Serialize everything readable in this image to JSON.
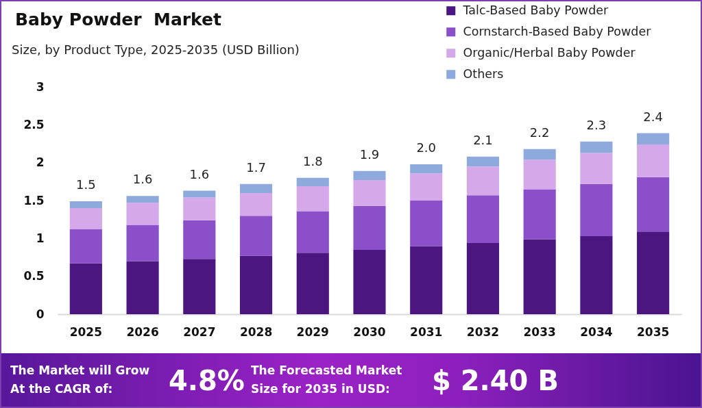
{
  "chart_data": {
    "type": "bar",
    "title": "Baby Powder  Market",
    "subtitle": "Size, by Product Type, 2025-2035 (USD Billion)",
    "categories": [
      "2025",
      "2026",
      "2027",
      "2028",
      "2029",
      "2030",
      "2031",
      "2032",
      "2033",
      "2034",
      "2035"
    ],
    "stacked": true,
    "series": [
      {
        "name": "Talc-Based Baby Powder",
        "color": "#4b1680",
        "values": [
          0.67,
          0.7,
          0.73,
          0.77,
          0.81,
          0.85,
          0.9,
          0.94,
          0.99,
          1.03,
          1.09
        ]
      },
      {
        "name": "Cornstarch-Based Baby Powder",
        "color": "#8b4fc9",
        "values": [
          0.45,
          0.48,
          0.51,
          0.53,
          0.55,
          0.58,
          0.6,
          0.63,
          0.66,
          0.69,
          0.72
        ]
      },
      {
        "name": "Organic/Herbal Baby Powder",
        "color": "#d4a8e9",
        "values": [
          0.28,
          0.29,
          0.3,
          0.3,
          0.33,
          0.34,
          0.36,
          0.38,
          0.39,
          0.41,
          0.43
        ]
      },
      {
        "name": "Others",
        "color": "#8eaadd",
        "values": [
          0.09,
          0.09,
          0.09,
          0.12,
          0.11,
          0.12,
          0.12,
          0.13,
          0.14,
          0.15,
          0.15
        ]
      }
    ],
    "ylim": [
      0,
      3
    ],
    "yticks": [
      0,
      0.5,
      1,
      1.5,
      2,
      2.5,
      3
    ],
    "totals": [
      "1.5",
      "1.6",
      "1.6",
      "1.7",
      "1.8",
      "1.9",
      "2.0",
      "2.1",
      "2.2",
      "2.3",
      "2.4"
    ],
    "legend": "top right",
    "annotations": [
      "The Market will Grow At the CAGR of:",
      "4.8%",
      "The Forecasted Market Size for 2035 in USD:",
      "$ 2.40 B"
    ]
  }
}
